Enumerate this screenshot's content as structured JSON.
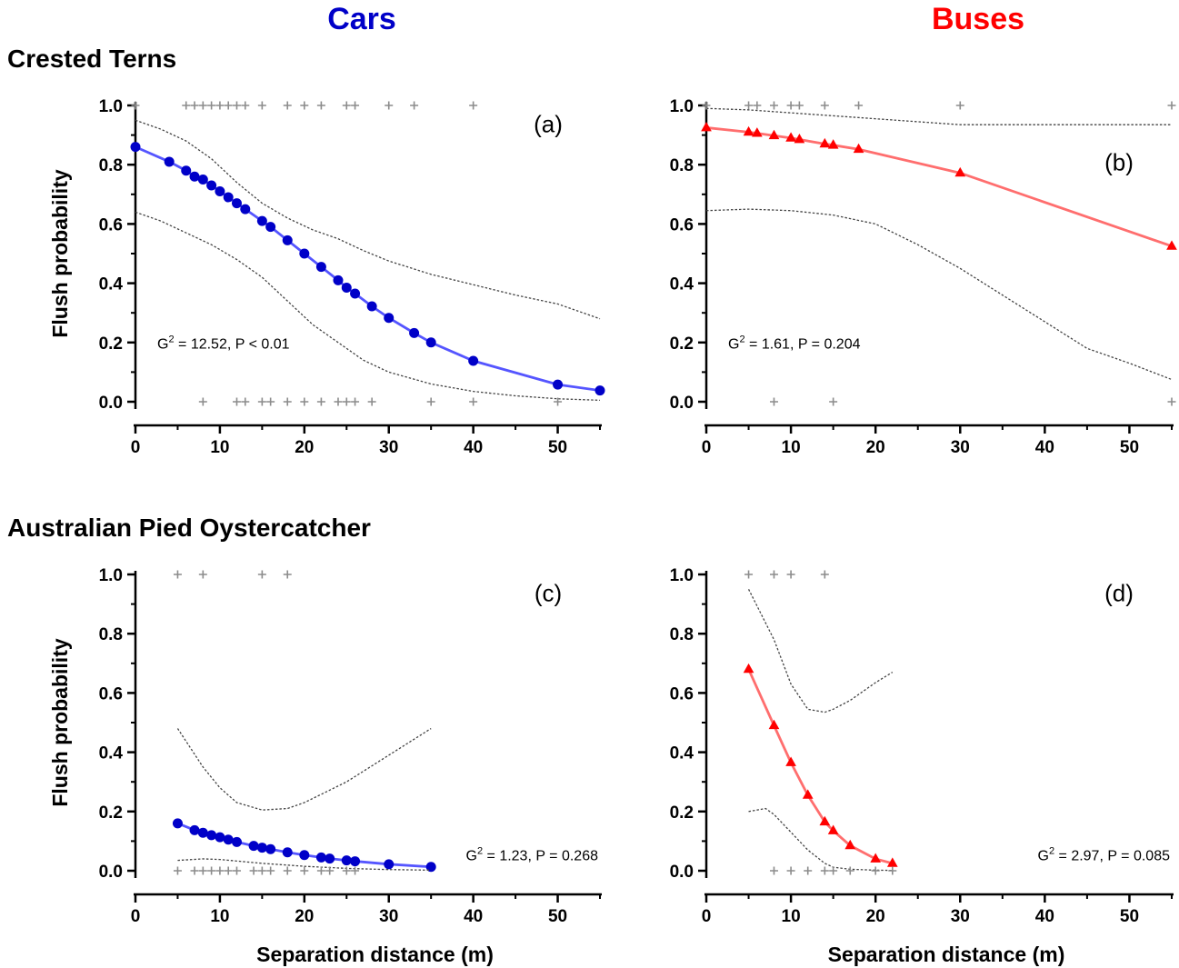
{
  "column_titles": [
    {
      "text": "Cars",
      "color": "#0000c8"
    },
    {
      "text": "Buses",
      "color": "#ff0000"
    }
  ],
  "row_titles": [
    "Crested Terns",
    "Australian Pied Oystercatcher"
  ],
  "colors": {
    "cars_line": "#5555ff",
    "cars_marker": "#0000c8",
    "buses_line": "#ff6e6e",
    "buses_marker": "#ff0000",
    "ci_line": "#444444",
    "observation_marker": "#8c8c8c"
  },
  "chart_data": [
    {
      "type": "line",
      "panel_label": "(a)",
      "title": "",
      "xlabel": "",
      "ylabel": "Flush probability",
      "xlim": [
        0,
        55
      ],
      "ylim": [
        0,
        1
      ],
      "x_ticks": [
        "0",
        "10",
        "20",
        "30",
        "40",
        "50"
      ],
      "y_ticks": [
        "0.0",
        "0.2",
        "0.4",
        "0.6",
        "0.8",
        "1.0"
      ],
      "stat": {
        "g": "G",
        "exp": "2",
        "rest": " = 12.52, P < 0.01"
      },
      "stat_position": "left",
      "series": [
        {
          "role": "fit",
          "vehicle": "cars",
          "x": [
            0,
            4,
            6,
            7,
            8,
            9,
            10,
            11,
            12,
            13,
            15,
            16,
            18,
            20,
            22,
            24,
            25,
            26,
            28,
            30,
            33,
            35,
            40,
            50,
            55
          ],
          "y": [
            0.86,
            0.81,
            0.78,
            0.76,
            0.75,
            0.73,
            0.71,
            0.69,
            0.67,
            0.65,
            0.61,
            0.59,
            0.545,
            0.5,
            0.455,
            0.41,
            0.385,
            0.365,
            0.322,
            0.283,
            0.232,
            0.2,
            0.138,
            0.058,
            0.038
          ]
        },
        {
          "role": "ci_upper",
          "x": [
            0,
            3,
            6,
            9,
            12,
            15,
            18,
            21,
            24,
            27,
            30,
            35,
            40,
            45,
            50,
            55
          ],
          "y": [
            0.95,
            0.92,
            0.88,
            0.82,
            0.74,
            0.67,
            0.62,
            0.58,
            0.55,
            0.51,
            0.475,
            0.43,
            0.395,
            0.36,
            0.33,
            0.28
          ]
        },
        {
          "role": "ci_lower",
          "x": [
            0,
            3,
            6,
            9,
            12,
            15,
            18,
            21,
            24,
            27,
            30,
            35,
            40,
            45,
            50,
            55
          ],
          "y": [
            0.64,
            0.61,
            0.57,
            0.53,
            0.48,
            0.42,
            0.34,
            0.26,
            0.2,
            0.14,
            0.1,
            0.06,
            0.035,
            0.02,
            0.01,
            0.005
          ]
        },
        {
          "role": "observed_flush",
          "x": [
            0,
            6,
            7,
            8,
            9,
            10,
            11,
            12,
            13,
            15,
            18,
            20,
            22,
            25,
            26,
            30,
            33,
            40
          ],
          "y": [
            1,
            1,
            1,
            1,
            1,
            1,
            1,
            1,
            1,
            1,
            1,
            1,
            1,
            1,
            1,
            1,
            1,
            1
          ]
        },
        {
          "role": "observed_no_flush",
          "x": [
            8,
            12,
            13,
            15,
            16,
            18,
            20,
            22,
            24,
            25,
            26,
            28,
            35,
            40,
            50
          ],
          "y": [
            0,
            0,
            0,
            0,
            0,
            0,
            0,
            0,
            0,
            0,
            0,
            0,
            0,
            0,
            0
          ]
        }
      ]
    },
    {
      "type": "line",
      "panel_label": "(b)",
      "title": "",
      "xlabel": "",
      "ylabel": "",
      "xlim": [
        0,
        55
      ],
      "ylim": [
        0,
        1
      ],
      "x_ticks": [
        "0",
        "10",
        "20",
        "30",
        "40",
        "50"
      ],
      "y_ticks": [
        "0.0",
        "0.2",
        "0.4",
        "0.6",
        "0.8",
        "1.0"
      ],
      "stat": {
        "g": "G",
        "exp": "2",
        "rest": " = 1.61, P = 0.204"
      },
      "stat_position": "left",
      "series": [
        {
          "role": "fit",
          "vehicle": "buses",
          "x": [
            0,
            5,
            6,
            8,
            10,
            11,
            14,
            15,
            18,
            30,
            55
          ],
          "y": [
            0.925,
            0.91,
            0.906,
            0.898,
            0.89,
            0.885,
            0.87,
            0.866,
            0.852,
            0.772,
            0.525
          ]
        },
        {
          "role": "ci_upper",
          "x": [
            0,
            5,
            10,
            15,
            20,
            25,
            30,
            35,
            40,
            45,
            50,
            55
          ],
          "y": [
            0.99,
            0.985,
            0.975,
            0.965,
            0.955,
            0.945,
            0.935,
            0.935,
            0.935,
            0.935,
            0.935,
            0.935
          ]
        },
        {
          "role": "ci_lower",
          "x": [
            0,
            5,
            10,
            15,
            20,
            25,
            30,
            35,
            40,
            45,
            50,
            55
          ],
          "y": [
            0.645,
            0.65,
            0.645,
            0.63,
            0.6,
            0.53,
            0.45,
            0.36,
            0.27,
            0.18,
            0.13,
            0.075
          ]
        },
        {
          "role": "observed_flush",
          "x": [
            0,
            5,
            6,
            8,
            10,
            11,
            14,
            18,
            30,
            55
          ],
          "y": [
            1,
            1,
            1,
            1,
            1,
            1,
            1,
            1,
            1,
            1
          ]
        },
        {
          "role": "observed_no_flush",
          "x": [
            8,
            15,
            55
          ],
          "y": [
            0,
            0,
            0
          ]
        }
      ],
      "panel_label_position": "right-middle"
    },
    {
      "type": "line",
      "panel_label": "(c)",
      "title": "",
      "xlabel": "Separation distance (m)",
      "ylabel": "Flush probability",
      "xlim": [
        0,
        55
      ],
      "ylim": [
        0,
        1
      ],
      "x_ticks": [
        "0",
        "10",
        "20",
        "30",
        "40",
        "50"
      ],
      "y_ticks": [
        "0.0",
        "0.2",
        "0.4",
        "0.6",
        "0.8",
        "1.0"
      ],
      "stat": {
        "g": "G",
        "exp": "2",
        "rest": " = 1.23, P = 0.268"
      },
      "stat_position": "right",
      "series": [
        {
          "role": "fit",
          "vehicle": "cars",
          "x": [
            5,
            7,
            8,
            9,
            10,
            11,
            12,
            14,
            15,
            16,
            18,
            20,
            22,
            23,
            25,
            26,
            30,
            35
          ],
          "y": [
            0.16,
            0.137,
            0.128,
            0.12,
            0.113,
            0.105,
            0.097,
            0.084,
            0.078,
            0.073,
            0.062,
            0.053,
            0.045,
            0.041,
            0.035,
            0.032,
            0.022,
            0.013
          ]
        },
        {
          "role": "ci_upper",
          "x": [
            5,
            8,
            10,
            12,
            15,
            18,
            20,
            25,
            30,
            35
          ],
          "y": [
            0.48,
            0.35,
            0.28,
            0.23,
            0.205,
            0.21,
            0.23,
            0.3,
            0.39,
            0.48
          ]
        },
        {
          "role": "ci_lower",
          "x": [
            5,
            8,
            10,
            15,
            20,
            25,
            30,
            35
          ],
          "y": [
            0.035,
            0.04,
            0.038,
            0.025,
            0.015,
            0.008,
            0.004,
            0.002
          ]
        },
        {
          "role": "observed_flush",
          "x": [
            5,
            8,
            15,
            18
          ],
          "y": [
            1,
            1,
            1,
            1
          ]
        },
        {
          "role": "observed_no_flush",
          "x": [
            5,
            7,
            8,
            9,
            10,
            11,
            12,
            14,
            15,
            16,
            18,
            20,
            22,
            23,
            25,
            26
          ],
          "y": [
            0,
            0,
            0,
            0,
            0,
            0,
            0,
            0,
            0,
            0,
            0,
            0,
            0,
            0,
            0,
            0
          ]
        }
      ]
    },
    {
      "type": "line",
      "panel_label": "(d)",
      "title": "",
      "xlabel": "Separation distance (m)",
      "ylabel": "",
      "xlim": [
        0,
        55
      ],
      "ylim": [
        0,
        1
      ],
      "x_ticks": [
        "0",
        "10",
        "20",
        "30",
        "40",
        "50"
      ],
      "y_ticks": [
        "0.0",
        "0.2",
        "0.4",
        "0.6",
        "0.8",
        "1.0"
      ],
      "stat": {
        "g": "G",
        "exp": "2",
        "rest": " = 2.97, P = 0.085"
      },
      "stat_position": "right",
      "series": [
        {
          "role": "fit",
          "vehicle": "buses",
          "x": [
            5,
            8,
            10,
            12,
            14,
            15,
            17,
            20,
            22
          ],
          "y": [
            0.68,
            0.49,
            0.365,
            0.255,
            0.165,
            0.135,
            0.085,
            0.04,
            0.025
          ]
        },
        {
          "role": "ci_upper",
          "x": [
            5,
            8,
            10,
            12,
            14,
            15,
            17,
            20,
            22
          ],
          "y": [
            0.95,
            0.78,
            0.63,
            0.545,
            0.535,
            0.545,
            0.575,
            0.635,
            0.67
          ]
        },
        {
          "role": "ci_lower",
          "x": [
            5,
            7,
            8,
            10,
            12,
            14,
            15,
            17,
            20,
            22
          ],
          "y": [
            0.2,
            0.21,
            0.19,
            0.13,
            0.07,
            0.025,
            0.012,
            0.005,
            0.002,
            0.001
          ]
        },
        {
          "role": "observed_flush",
          "x": [
            5,
            8,
            10,
            14
          ],
          "y": [
            1,
            1,
            1,
            1
          ]
        },
        {
          "role": "observed_no_flush",
          "x": [
            8,
            10,
            12,
            14,
            15,
            17,
            20,
            22
          ],
          "y": [
            0,
            0,
            0,
            0,
            0,
            0,
            0,
            0
          ]
        }
      ]
    }
  ]
}
